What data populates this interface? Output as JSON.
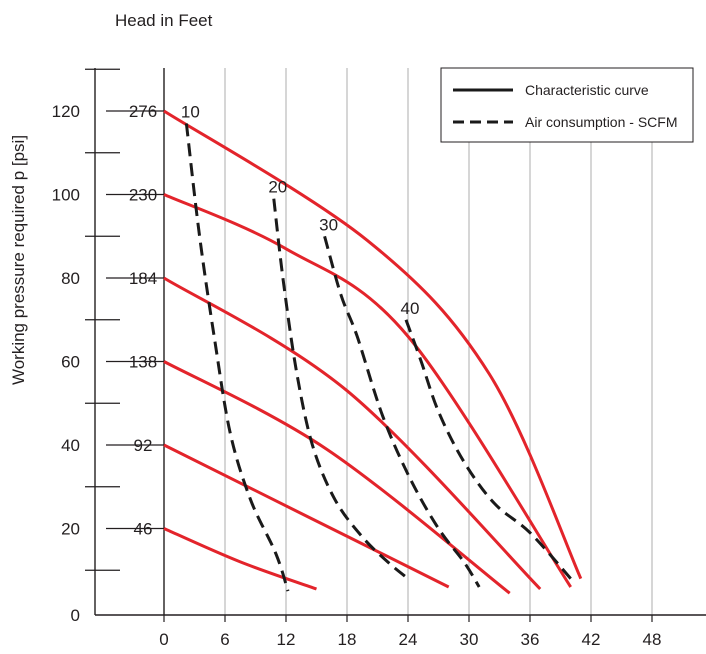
{
  "chart_data": {
    "type": "line",
    "title": "Head in Feet",
    "ylabel": "Working pressure required p [psi]",
    "xlabel": "",
    "xlim": [
      0,
      50
    ],
    "ylim": [
      0,
      130
    ],
    "x_ticks": [
      0,
      6,
      12,
      18,
      24,
      30,
      36,
      42,
      48
    ],
    "y_ticks": [
      0,
      20,
      40,
      60,
      80,
      100,
      120
    ],
    "head_ticks": [
      {
        "label": "46",
        "value": 20
      },
      {
        "label": "92",
        "value": 40
      },
      {
        "label": "138",
        "value": 60
      },
      {
        "label": "184",
        "value": 80
      },
      {
        "label": "230",
        "value": 100
      },
      {
        "label": "276",
        "value": 120
      }
    ],
    "grid": true,
    "legend": {
      "position": "top-right",
      "entries": [
        {
          "label": "Characteristic curve",
          "style": "solid"
        },
        {
          "label": "Air consumption - SCFM",
          "style": "dashed"
        }
      ]
    },
    "colors": {
      "characteristic": "#e3242b",
      "air": "#1a1a1a"
    },
    "series": [
      {
        "kind": "characteristic",
        "points": [
          [
            0,
            20
          ],
          [
            7.5,
            12
          ],
          [
            15,
            5.5
          ]
        ]
      },
      {
        "kind": "characteristic",
        "points": [
          [
            0,
            40
          ],
          [
            14,
            23
          ],
          [
            28,
            6
          ]
        ]
      },
      {
        "kind": "characteristic",
        "points": [
          [
            0,
            60
          ],
          [
            16,
            39
          ],
          [
            34,
            4.5
          ]
        ]
      },
      {
        "kind": "characteristic",
        "points": [
          [
            0,
            80
          ],
          [
            18,
            53
          ],
          [
            37,
            5.5
          ]
        ]
      },
      {
        "kind": "characteristic",
        "points": [
          [
            0,
            100
          ],
          [
            12,
            87
          ],
          [
            24,
            66
          ],
          [
            40,
            6
          ]
        ]
      },
      {
        "kind": "characteristic",
        "points": [
          [
            0,
            120
          ],
          [
            20,
            89
          ],
          [
            32,
            57
          ],
          [
            41,
            8
          ]
        ]
      },
      {
        "kind": "air",
        "label": "10",
        "points": [
          [
            2.2,
            117
          ],
          [
            3.5,
            90
          ],
          [
            5,
            65
          ],
          [
            6.5,
            43
          ],
          [
            8.5,
            27
          ],
          [
            11,
            14
          ],
          [
            12.2,
            5
          ]
        ]
      },
      {
        "kind": "air",
        "label": "20",
        "points": [
          [
            10.8,
            99
          ],
          [
            11.7,
            80
          ],
          [
            13,
            58
          ],
          [
            14.6,
            40
          ],
          [
            16.8,
            27
          ],
          [
            19.5,
            18
          ],
          [
            22,
            12
          ],
          [
            24,
            8
          ]
        ]
      },
      {
        "kind": "air",
        "label": "30",
        "points": [
          [
            15.8,
            90
          ],
          [
            17.4,
            76
          ],
          [
            19,
            66
          ],
          [
            21.5,
            47
          ],
          [
            24.2,
            32
          ],
          [
            27,
            20
          ],
          [
            29.5,
            12
          ],
          [
            31,
            6
          ]
        ]
      },
      {
        "kind": "air",
        "label": "40",
        "points": [
          [
            23.8,
            70
          ],
          [
            25.3,
            60
          ],
          [
            27,
            48
          ],
          [
            29.5,
            36
          ],
          [
            32.5,
            26
          ],
          [
            36,
            19
          ],
          [
            40,
            8
          ]
        ]
      }
    ]
  }
}
